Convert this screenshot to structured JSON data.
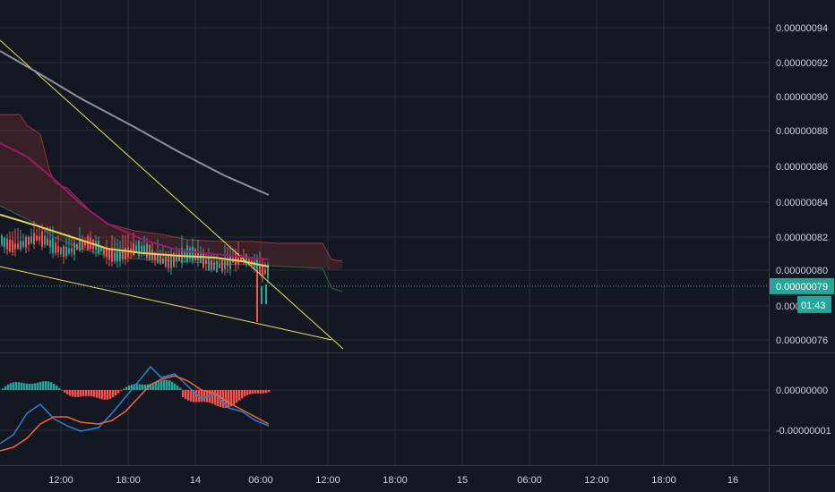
{
  "colors": {
    "background": "#131722",
    "grid": "#2a2e39",
    "axis_text": "#d1d4dc",
    "up": "#26a69a",
    "down": "#ef5350",
    "trendline": "#e8e05a",
    "ma_slow": "#8f8f99",
    "ma_mid": "#9c1a6a",
    "ma_fast": "#e0cf5b",
    "cloud_red": "#a33b3b",
    "cloud_green": "#2e6a3a",
    "macd": "#2b7fd6",
    "signal": "#f0653a",
    "price_tag": "#26a69a"
  },
  "chart_data": [
    {
      "type": "candlestick",
      "x_ticks": [
        "12:00",
        "18:00",
        "14",
        "06:00",
        "12:00",
        "18:00",
        "15",
        "06:00",
        "12:00",
        "18:00",
        "16"
      ],
      "y_ticks": [
        "0.00000094",
        "0.00000092",
        "0.00000090",
        "0.00000088",
        "0.00000086",
        "0.00000084",
        "0.00000082",
        "0.00000080",
        "0.00000078",
        "0.00000076"
      ],
      "y_tick_values": [
        9.4e-07,
        9.2e-07,
        9e-07,
        8.8e-07,
        8.6e-07,
        8.4e-07,
        8.2e-07,
        8e-07,
        7.8e-07,
        7.6e-07
      ],
      "ylim": [
        7.5e-07,
        9.5e-07
      ],
      "current_price_label": "0.00000079",
      "current_price": 7.91e-07,
      "countdown_label": "01:43",
      "overlays": [
        "trendline-upper",
        "trendline-lower",
        "moving-average-gray",
        "moving-average-purple",
        "moving-average-yellow",
        "ichimoku-cloud"
      ],
      "grid": true
    },
    {
      "type": "macd",
      "y_ticks": [
        "0.00000000",
        "-0.00000001"
      ],
      "y_tick_values": [
        0,
        -1e-08
      ],
      "series": [
        "macd-line",
        "signal-line",
        "histogram"
      ],
      "grid": true
    }
  ]
}
